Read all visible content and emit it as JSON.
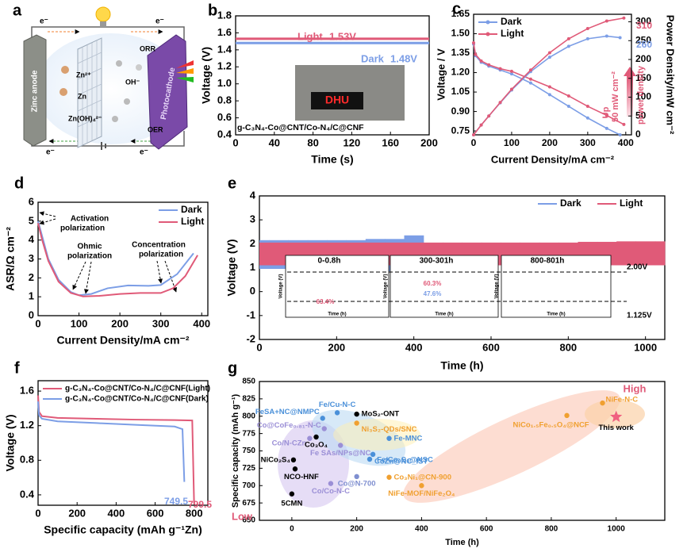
{
  "panel_a": {
    "label": "a",
    "texts": {
      "anode": "Zinc anode",
      "zn2": "Zn²⁺",
      "zn": "Zn",
      "zincate": "Zn(OH)₄²⁻",
      "oh": "OH⁻",
      "orr": "ORR",
      "oer": "OER",
      "cathode": "Photocathode",
      "electron": "e⁻"
    }
  },
  "chart_data": [
    {
      "type": "line",
      "panel": "b",
      "xlabel": "Time (s)",
      "ylabel": "Voltage (V)",
      "xlim": [
        0,
        200
      ],
      "xticks": [
        0,
        40,
        80,
        120,
        160,
        200
      ],
      "ylim": [
        0.4,
        1.8
      ],
      "yticks": [
        0.4,
        0.6,
        0.8,
        {
          "value": 1,
          "label": "1.0"
        },
        1.2,
        1.4,
        1.6,
        1.8
      ],
      "legend": "inline",
      "series": [
        {
          "name": "Light",
          "color": "#e05a78",
          "x": [
            0,
            200
          ],
          "values": [
            1.53,
            1.53
          ]
        },
        {
          "name": "Dark",
          "color": "#7c9ee6",
          "x": [
            0,
            200
          ],
          "values": [
            1.48,
            1.48
          ]
        }
      ],
      "annotations": [
        "1.53V",
        "1.48V",
        "g-C₃N₄-Co@CNT/Co-N₄/C@CNF",
        "DHU"
      ]
    },
    {
      "type": "line",
      "panel": "c",
      "xlabel": "Current Density/mA cm⁻²",
      "ylabel": "Voltage / V",
      "y2label": "Power Density/mW cm⁻²",
      "xlim": [
        0,
        415
      ],
      "xticks": [
        0,
        100,
        200,
        300,
        400
      ],
      "ylim": [
        0.72,
        1.65
      ],
      "yticks": [
        0.75,
        {
          "value": 0.9,
          "label": "0.90"
        },
        1.05,
        {
          "value": 1.2,
          "label": "1.20"
        },
        1.35,
        {
          "value": 1.5,
          "label": "1.50"
        },
        1.65
      ],
      "y2lim": [
        0,
        320
      ],
      "y2ticks": [
        0,
        50,
        100,
        150,
        200,
        250,
        300
      ],
      "legend": "upper left",
      "series": [
        {
          "name": "Dark",
          "color": "#7c9ee6",
          "x": [
            0,
            5,
            20,
            40,
            70,
            100,
            150,
            200,
            250,
            300,
            350,
            385
          ],
          "values": [
            1.42,
            1.33,
            1.28,
            1.25,
            1.22,
            1.19,
            1.12,
            1.03,
            0.94,
            0.85,
            0.77,
            0.72
          ]
        },
        {
          "name": "Light",
          "color": "#e05a78",
          "x": [
            0,
            5,
            20,
            40,
            70,
            100,
            150,
            200,
            250,
            300,
            350,
            395
          ],
          "values": [
            1.43,
            1.34,
            1.29,
            1.26,
            1.23,
            1.21,
            1.15,
            1.09,
            1.02,
            0.94,
            0.87,
            0.8
          ]
        },
        {
          "name": "Dark",
          "color": "#7c9ee6",
          "axis": "y2",
          "x": [
            0,
            20,
            40,
            70,
            100,
            150,
            200,
            250,
            300,
            350,
            385
          ],
          "values": [
            0,
            26,
            50,
            85,
            119,
            168,
            206,
            235,
            255,
            262,
            258
          ]
        },
        {
          "name": "Light",
          "color": "#e05a78",
          "axis": "y2",
          "x": [
            0,
            20,
            40,
            70,
            100,
            150,
            200,
            250,
            300,
            350,
            395
          ],
          "values": [
            0,
            26,
            50,
            86,
            121,
            172,
            218,
            255,
            282,
            302,
            310
          ]
        }
      ],
      "annotations": [
        "310",
        "260",
        "Up",
        "50 mW cm⁻²",
        "power density"
      ]
    },
    {
      "type": "line",
      "panel": "d",
      "xlabel": "Current Density/mA cm⁻²",
      "ylabel": "ASR/Ω cm⁻²",
      "xlim": [
        0,
        415
      ],
      "xticks": [
        0,
        100,
        200,
        300,
        400
      ],
      "ylim": [
        0,
        6
      ],
      "yticks": [
        0,
        1,
        2,
        3,
        4,
        5,
        6
      ],
      "legend": "upper right",
      "series": [
        {
          "name": "Dark",
          "color": "#7c9ee6",
          "x": [
            0,
            10,
            25,
            50,
            80,
            100,
            130,
            170,
            220,
            270,
            300,
            340,
            380
          ],
          "values": [
            5.0,
            4.2,
            3.0,
            1.9,
            1.25,
            1.08,
            1.15,
            1.45,
            1.6,
            1.58,
            1.62,
            2.2,
            3.3
          ]
        },
        {
          "name": "Light",
          "color": "#e05a78",
          "x": [
            0,
            10,
            25,
            50,
            80,
            110,
            150,
            200,
            250,
            300,
            330,
            360,
            390
          ],
          "values": [
            4.9,
            4.0,
            2.9,
            1.8,
            1.2,
            1.02,
            1.05,
            1.15,
            1.2,
            1.2,
            1.45,
            2.1,
            3.2
          ]
        }
      ],
      "annotations": [
        "Activation",
        "polarization",
        "Ohmic",
        "polarization",
        "Concentration",
        "polarization"
      ]
    },
    {
      "type": "band",
      "panel": "e",
      "xlabel": "Time (h)",
      "ylabel": "Voltage (V)",
      "xlim": [
        0,
        1050
      ],
      "xticks": [
        0,
        200,
        400,
        600,
        800,
        1000
      ],
      "ylim": [
        -2,
        4
      ],
      "yticks": [
        -2,
        -1,
        0,
        1,
        2,
        3,
        4
      ],
      "legend": "upper right",
      "x": [
        0,
        50,
        100,
        150,
        200,
        250,
        300,
        350,
        400,
        450,
        500,
        550,
        600,
        650,
        700,
        750,
        800,
        850,
        900,
        950,
        1000,
        1050
      ],
      "series": [
        {
          "name": "Dark",
          "color": "#7c9ee6",
          "high": [
            2.15,
            2.15,
            2.15,
            2.15,
            2.15,
            2.15,
            2.2,
            2.2,
            2.35,
            1.95,
            1.95,
            1.95,
            1.95,
            1.95,
            1.95,
            1.95,
            1.95,
            1.95,
            1.95,
            1.95,
            1.95,
            1.95
          ],
          "low": [
            0.95,
            0.95,
            0.9,
            0.9,
            0.9,
            0.9,
            0.9,
            0.85,
            0.85,
            1.15,
            1.15,
            1.15,
            1.15,
            1.15,
            1.15,
            1.15,
            1.15,
            1.15,
            1.15,
            1.15,
            1.15,
            1.15
          ]
        },
        {
          "name": "Light",
          "color": "#e05a78",
          "high": [
            2.05,
            2.05,
            2.05,
            2.05,
            2.05,
            2.05,
            2.05,
            2.05,
            2.05,
            2.05,
            2.05,
            2.05,
            2.05,
            2.05,
            2.05,
            2.05,
            2.05,
            2.08,
            2.08,
            2.1,
            2.1,
            2.1
          ],
          "low": [
            1.1,
            1.1,
            1.1,
            1.1,
            1.1,
            1.1,
            1.1,
            1.1,
            1.1,
            1.1,
            1.1,
            1.1,
            1.1,
            1.1,
            1.1,
            1.1,
            1.1,
            1.1,
            1.1,
            1.1,
            1.1,
            1.1
          ]
        }
      ],
      "inset_xlabel": "Time (h)",
      "inset_ylabel": "Voltage (V)",
      "annotations": [
        "0-0.8h",
        "300-301h",
        "800-801h",
        "2.00V",
        "1.125V",
        "63.4%",
        "60.3%",
        "47.6%"
      ]
    },
    {
      "type": "line",
      "panel": "f",
      "xlabel": "Specific capacity (mAh g⁻¹Zn)",
      "ylabel": "Voltage (V)",
      "xlim": [
        0,
        870
      ],
      "xticks": [
        0,
        200,
        400,
        600,
        800
      ],
      "ylim": [
        0.28,
        1.72
      ],
      "yticks": [
        0.4,
        0.8,
        1.2,
        1.6
      ],
      "legend": "upper left",
      "series": [
        {
          "name": "g-C₃N₄-Co@CNT/Co-N₄/C@CNF(Light)",
          "color": "#e05a78",
          "x": [
            0,
            5,
            20,
            100,
            300,
            500,
            700,
            790,
            799.5
          ],
          "values": [
            1.55,
            1.36,
            1.31,
            1.29,
            1.28,
            1.27,
            1.265,
            1.26,
            0.3
          ]
        },
        {
          "name": "g-C₃N₄-Co@CNT/Co-N₄/C@CNF(Dark)",
          "color": "#7c9ee6",
          "x": [
            0,
            5,
            20,
            100,
            300,
            500,
            700,
            740,
            749.5
          ],
          "values": [
            1.48,
            1.32,
            1.28,
            1.25,
            1.23,
            1.21,
            1.19,
            1.16,
            0.55
          ]
        }
      ],
      "annotations": [
        "749.5",
        "799.5"
      ]
    },
    {
      "type": "scatter",
      "panel": "g",
      "xlabel": "Time (h)",
      "ylabel": "Specific capacity (mAh g⁻¹)",
      "xlim": [
        -100,
        1150
      ],
      "xticks": [
        0,
        200,
        400,
        600,
        800,
        1000
      ],
      "ylim": [
        650,
        850
      ],
      "yticks": [
        650,
        675,
        700,
        725,
        750,
        775,
        800,
        825,
        850
      ],
      "x": [
        95,
        140,
        200,
        200,
        100,
        55,
        75,
        150,
        300,
        250,
        5,
        240,
        300,
        200,
        120,
        400,
        10,
        0,
        848,
        958,
        1000
      ],
      "values": [
        797,
        805,
        803,
        790,
        782,
        768,
        770,
        758,
        768,
        745,
        737,
        738,
        712,
        713,
        703,
        700,
        724,
        688,
        801,
        819,
        799
      ],
      "point_labels": [
        "FeSA+NC@NMPC",
        "Fe/Cu-N-C",
        "MoS₂-ONT",
        "Ni₃S₂-QDs/SNC",
        "Co@CoFe₀.₈₁-N-C",
        "Co/N-CZn",
        "Co₃O₄",
        "Fe SAs/NPs@NC",
        "Fe-MNC",
        "Fe/Co₉S₈@NSC",
        "NiCo₂S₄",
        "CoZn@NC_IST",
        "Co₃Ni₁@CN-900",
        "Co@N-700",
        "Co/Co-N-C",
        "NiFe-MOF/NiFe₂O₄",
        "NCO-HNF",
        "5CMN",
        "NiCo₁.₅Fe₀.₅O₄@NCF",
        "NiFe-N-C",
        "This work"
      ],
      "colors": [
        "#4a90d9",
        "#4a90d9",
        "#000000",
        "#f0a030",
        "#9b8fd6",
        "#9b8fd6",
        "#000000",
        "#9b8fd6",
        "#4a90d9",
        "#4a90d9",
        "#000000",
        "#4a90d9",
        "#f0a030",
        "#7f8fd0",
        "#9b8fd6",
        "#f0a030",
        "#000000",
        "#000000",
        "#f0a030",
        "#f0a030",
        "#f06080"
      ],
      "markers": [
        "circle",
        "circle",
        "circle",
        "circle",
        "circle",
        "circle",
        "circle",
        "circle",
        "circle",
        "circle",
        "circle",
        "circle",
        "circle",
        "circle",
        "circle",
        "circle",
        "circle",
        "circle",
        "circle",
        "circle",
        "star"
      ],
      "annotations": [
        "High",
        "Low"
      ]
    }
  ]
}
